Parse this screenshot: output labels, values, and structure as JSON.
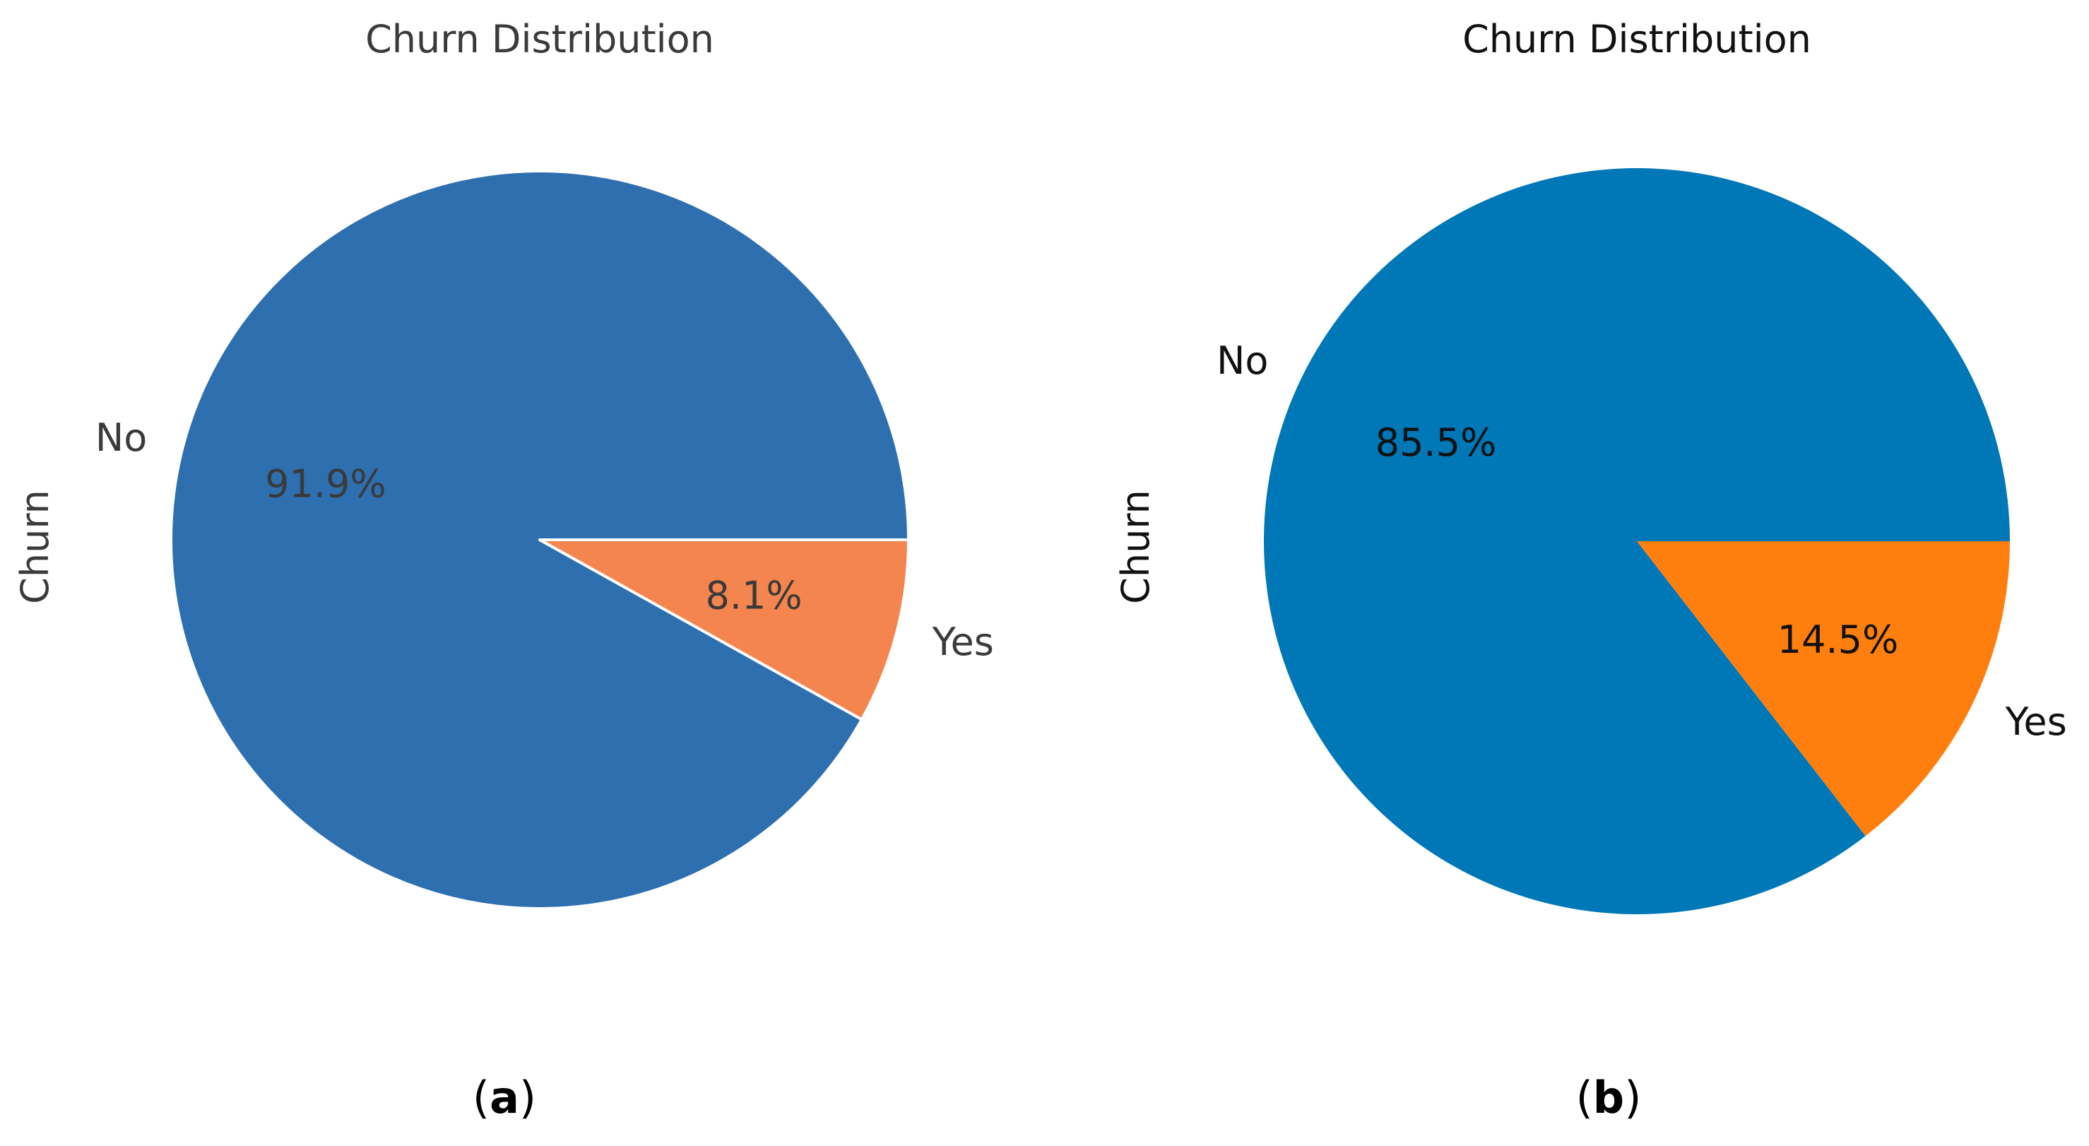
{
  "chart_data": [
    {
      "type": "pie",
      "title": "Churn Distribution",
      "ylabel": "Churn",
      "caption": "a",
      "slices": [
        {
          "label": "No",
          "value": 91.9,
          "pct_label": "91.9%",
          "color": "#2e6fb0"
        },
        {
          "label": "Yes",
          "value": 8.1,
          "pct_label": "8.1%",
          "color": "#f4854f"
        }
      ],
      "edge_color": "#ffffff",
      "text_color": "#3a3a3a"
    },
    {
      "type": "pie",
      "title": "Churn Distribution",
      "ylabel": "Churn",
      "caption": "b",
      "slices": [
        {
          "label": "No",
          "value": 85.5,
          "pct_label": "85.5%",
          "color": "#0077b6"
        },
        {
          "label": "Yes",
          "value": 14.5,
          "pct_label": "14.5%",
          "color": "#ff7f0e"
        }
      ],
      "edge_color": null,
      "text_color": "#111111"
    }
  ]
}
